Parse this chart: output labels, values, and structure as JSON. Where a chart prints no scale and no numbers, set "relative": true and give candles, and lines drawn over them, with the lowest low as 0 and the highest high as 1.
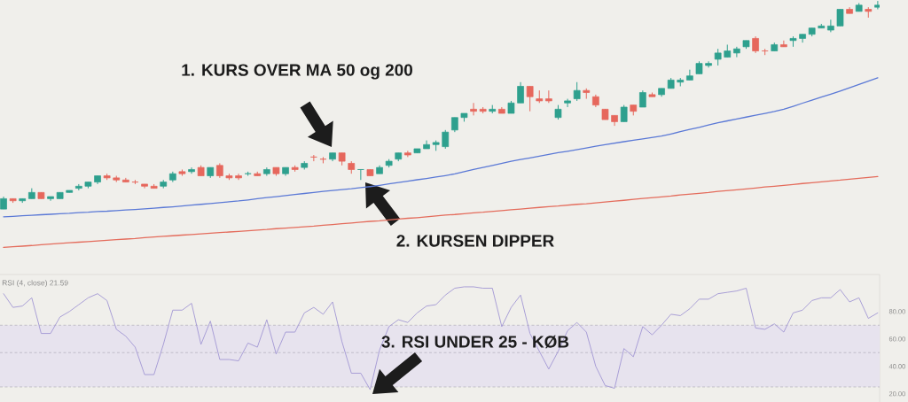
{
  "chart_data": [
    {
      "type": "candlestick",
      "relative": true,
      "categories": [
        null,
        null,
        null,
        null,
        null,
        null,
        null,
        null,
        null,
        null,
        null,
        null,
        null,
        null,
        null,
        null,
        null,
        null,
        null,
        null,
        null,
        null,
        null,
        null,
        null,
        null,
        null,
        null,
        null,
        null,
        null,
        null,
        null,
        null,
        null,
        null,
        null,
        null,
        null,
        null,
        null,
        null,
        null,
        null,
        null,
        null,
        null,
        null,
        null,
        null,
        null,
        null,
        null,
        null,
        null,
        null,
        null,
        null,
        null,
        null,
        null,
        null,
        null,
        null,
        null,
        null,
        null,
        null,
        null,
        null,
        null,
        null,
        null,
        null,
        null,
        null,
        null,
        null,
        null,
        null,
        null,
        null,
        null,
        null,
        null,
        null,
        null,
        null,
        null,
        null,
        null,
        null,
        null,
        null
      ],
      "ohlc": [
        [
          0,
          0.06,
          0,
          0.05
        ],
        [
          0.05,
          0.05,
          0.03,
          0.04
        ],
        [
          0.04,
          0.05,
          0.03,
          0.05
        ],
        [
          0.05,
          0.1,
          0.05,
          0.08
        ],
        [
          0.08,
          0.08,
          0.05,
          0.05
        ],
        [
          0.05,
          0.06,
          0.04,
          0.06
        ],
        [
          0.05,
          0.08,
          0.05,
          0.08
        ],
        [
          0.08,
          0.09,
          0.08,
          0.09
        ],
        [
          0.1,
          0.12,
          0.09,
          0.11
        ],
        [
          0.11,
          0.13,
          0.1,
          0.13
        ],
        [
          0.13,
          0.16,
          0.12,
          0.16
        ],
        [
          0.16,
          0.17,
          0.14,
          0.15
        ],
        [
          0.15,
          0.16,
          0.13,
          0.14
        ],
        [
          0.14,
          0.15,
          0.13,
          0.13
        ],
        [
          0.13,
          0.14,
          0.12,
          0.13
        ],
        [
          0.12,
          0.12,
          0.1,
          0.11
        ],
        [
          0.11,
          0.12,
          0.1,
          0.1
        ],
        [
          0.11,
          0.14,
          0.1,
          0.13
        ],
        [
          0.14,
          0.18,
          0.13,
          0.17
        ],
        [
          0.18,
          0.19,
          0.16,
          0.17
        ],
        [
          0.18,
          0.2,
          0.17,
          0.19
        ],
        [
          0.2,
          0.21,
          0.16,
          0.16
        ],
        [
          0.16,
          0.2,
          0.15,
          0.2
        ],
        [
          0.21,
          0.22,
          0.15,
          0.16
        ],
        [
          0.16,
          0.17,
          0.14,
          0.15
        ],
        [
          0.16,
          0.17,
          0.14,
          0.15
        ],
        [
          0.17,
          0.18,
          0.16,
          0.17
        ],
        [
          0.17,
          0.18,
          0.16,
          0.16
        ],
        [
          0.17,
          0.2,
          0.16,
          0.19
        ],
        [
          0.2,
          0.2,
          0.16,
          0.17
        ],
        [
          0.17,
          0.2,
          0.16,
          0.2
        ],
        [
          0.2,
          0.21,
          0.18,
          0.19
        ],
        [
          0.2,
          0.23,
          0.19,
          0.22
        ],
        [
          0.25,
          0.26,
          0.23,
          0.25
        ],
        [
          0.24,
          0.25,
          0.22,
          0.24
        ],
        [
          0.24,
          0.27,
          0.23,
          0.27
        ],
        [
          0.27,
          0.27,
          0.21,
          0.23
        ],
        [
          0.22,
          0.23,
          0.17,
          0.19
        ],
        [
          0.19,
          0.19,
          0.14,
          0.19
        ],
        [
          0.19,
          0.19,
          0.16,
          0.16
        ],
        [
          0.17,
          0.21,
          0.17,
          0.2
        ],
        [
          0.21,
          0.24,
          0.2,
          0.23
        ],
        [
          0.24,
          0.27,
          0.23,
          0.27
        ],
        [
          0.27,
          0.28,
          0.25,
          0.26
        ],
        [
          0.27,
          0.29,
          0.27,
          0.29
        ],
        [
          0.29,
          0.33,
          0.29,
          0.31
        ],
        [
          0.31,
          0.33,
          0.28,
          0.32
        ],
        [
          0.3,
          0.38,
          0.29,
          0.37
        ],
        [
          0.38,
          0.44,
          0.37,
          0.44
        ],
        [
          0.44,
          0.46,
          0.42,
          0.46
        ],
        [
          0.48,
          0.51,
          0.45,
          0.47
        ],
        [
          0.48,
          0.49,
          0.46,
          0.47
        ],
        [
          0.47,
          0.5,
          0.46,
          0.48
        ],
        [
          0.48,
          0.49,
          0.46,
          0.46
        ],
        [
          0.46,
          0.52,
          0.46,
          0.51
        ],
        [
          0.51,
          0.61,
          0.51,
          0.59
        ],
        [
          0.59,
          0.59,
          0.47,
          0.54
        ],
        [
          0.53,
          0.57,
          0.51,
          0.52
        ],
        [
          0.53,
          0.57,
          0.51,
          0.52
        ],
        [
          0.44,
          0.5,
          0.43,
          0.48
        ],
        [
          0.51,
          0.53,
          0.49,
          0.52
        ],
        [
          0.53,
          0.61,
          0.52,
          0.57
        ],
        [
          0.57,
          0.58,
          0.53,
          0.56
        ],
        [
          0.54,
          0.55,
          0.49,
          0.5
        ],
        [
          0.48,
          0.48,
          0.43,
          0.43
        ],
        [
          0.45,
          0.45,
          0.4,
          0.42
        ],
        [
          0.42,
          0.5,
          0.42,
          0.49
        ],
        [
          0.5,
          0.5,
          0.45,
          0.47
        ],
        [
          0.49,
          0.57,
          0.49,
          0.56
        ],
        [
          0.55,
          0.56,
          0.54,
          0.54
        ],
        [
          0.55,
          0.58,
          0.54,
          0.58
        ],
        [
          0.58,
          0.63,
          0.58,
          0.62
        ],
        [
          0.61,
          0.63,
          0.59,
          0.62
        ],
        [
          0.62,
          0.67,
          0.62,
          0.64
        ],
        [
          0.65,
          0.71,
          0.65,
          0.7
        ],
        [
          0.69,
          0.71,
          0.68,
          0.7
        ],
        [
          0.72,
          0.77,
          0.69,
          0.75
        ],
        [
          0.73,
          0.79,
          0.73,
          0.76
        ],
        [
          0.75,
          0.78,
          0.73,
          0.77
        ],
        [
          0.78,
          0.81,
          0.77,
          0.81
        ],
        [
          0.82,
          0.83,
          0.75,
          0.76
        ],
        [
          0.76,
          0.77,
          0.74,
          0.76
        ],
        [
          0.76,
          0.8,
          0.76,
          0.79
        ],
        [
          0.79,
          0.81,
          0.78,
          0.78
        ],
        [
          0.81,
          0.83,
          0.78,
          0.82
        ],
        [
          0.82,
          0.84,
          0.8,
          0.84
        ],
        [
          0.84,
          0.87,
          0.83,
          0.87
        ],
        [
          0.87,
          0.89,
          0.87,
          0.88
        ],
        [
          0.86,
          0.91,
          0.85,
          0.88
        ],
        [
          0.88,
          0.96,
          0.88,
          0.96
        ],
        [
          0.96,
          0.97,
          0.94,
          0.94
        ],
        [
          0.95,
          0.99,
          0.95,
          0.98
        ],
        [
          0.96,
          0.97,
          0.92,
          0.95
        ],
        [
          0.97,
          1.0,
          0.96,
          0.98
        ]
      ],
      "colors": [
        "#2ea08e",
        "#e6675c",
        "#2ea08e",
        "#2ea08e",
        "#e6675c",
        "#2ea08e",
        "#2ea08e",
        "#2ea08e",
        "#2ea08e",
        "#2ea08e",
        "#2ea08e",
        "#e6675c",
        "#e6675c",
        "#e6675c",
        "#e6675c",
        "#e6675c",
        "#e6675c",
        "#2ea08e",
        "#2ea08e",
        "#e6675c",
        "#2ea08e",
        "#e6675c",
        "#2ea08e",
        "#e6675c",
        "#e6675c",
        "#e6675c",
        "#2ea08e",
        "#e6675c",
        "#2ea08e",
        "#e6675c",
        "#2ea08e",
        "#e6675c",
        "#2ea08e",
        "#e6675c",
        "#e6675c",
        "#2ea08e",
        "#e6675c",
        "#e6675c",
        "#2ea08e",
        "#e6675c",
        "#2ea08e",
        "#2ea08e",
        "#2ea08e",
        "#e6675c",
        "#2ea08e",
        "#2ea08e",
        "#2ea08e",
        "#2ea08e",
        "#2ea08e",
        "#2ea08e",
        "#e6675c",
        "#e6675c",
        "#2ea08e",
        "#e6675c",
        "#2ea08e",
        "#2ea08e",
        "#e6675c",
        "#e6675c",
        "#e6675c",
        "#2ea08e",
        "#2ea08e",
        "#2ea08e",
        "#e6675c",
        "#e6675c",
        "#e6675c",
        "#e6675c",
        "#2ea08e",
        "#e6675c",
        "#2ea08e",
        "#e6675c",
        "#2ea08e",
        "#2ea08e",
        "#2ea08e",
        "#2ea08e",
        "#2ea08e",
        "#2ea08e",
        "#2ea08e",
        "#2ea08e",
        "#2ea08e",
        "#2ea08e",
        "#e6675c",
        "#e6675c",
        "#2ea08e",
        "#e6675c",
        "#2ea08e",
        "#2ea08e",
        "#2ea08e",
        "#2ea08e",
        "#2ea08e",
        "#2ea08e",
        "#e6675c",
        "#2ea08e",
        "#e6675c",
        "#2ea08e"
      ],
      "series": [
        {
          "type": "line",
          "color": "#5b79d6",
          "values": [
            -0.037,
            -0.035,
            -0.032,
            -0.03,
            -0.027,
            -0.025,
            -0.022,
            -0.02,
            -0.017,
            -0.015,
            -0.012,
            -0.01,
            -0.007,
            -0.004,
            -0.002,
            0.001,
            0.004,
            0.008,
            0.011,
            0.015,
            0.019,
            0.023,
            0.027,
            0.031,
            0.035,
            0.039,
            0.044,
            0.05,
            0.055,
            0.06,
            0.065,
            0.07,
            0.075,
            0.08,
            0.085,
            0.089,
            0.094,
            0.098,
            0.103,
            0.108,
            0.114,
            0.121,
            0.128,
            0.134,
            0.141,
            0.147,
            0.154,
            0.161,
            0.169,
            0.18,
            0.19,
            0.2,
            0.21,
            0.22,
            0.23,
            0.238,
            0.246,
            0.254,
            0.263,
            0.271,
            0.278,
            0.286,
            0.294,
            0.302,
            0.31,
            0.317,
            0.324,
            0.331,
            0.337,
            0.344,
            0.351,
            0.361,
            0.372,
            0.383,
            0.393,
            0.404,
            0.415,
            0.424,
            0.433,
            0.442,
            0.451,
            0.46,
            0.469,
            0.48,
            0.494,
            0.509,
            0.523,
            0.538,
            0.552,
            0.567,
            0.583,
            0.599,
            0.615,
            0.631
          ]
        },
        {
          "type": "line",
          "color": "#e46c5c",
          "values": [
            -0.184,
            -0.181,
            -0.178,
            -0.175,
            -0.171,
            -0.168,
            -0.165,
            -0.162,
            -0.159,
            -0.156,
            -0.153,
            -0.15,
            -0.147,
            -0.144,
            -0.141,
            -0.137,
            -0.134,
            -0.131,
            -0.128,
            -0.125,
            -0.122,
            -0.119,
            -0.116,
            -0.113,
            -0.11,
            -0.107,
            -0.104,
            -0.101,
            -0.098,
            -0.094,
            -0.091,
            -0.088,
            -0.085,
            -0.082,
            -0.078,
            -0.074,
            -0.07,
            -0.067,
            -0.063,
            -0.059,
            -0.056,
            -0.052,
            -0.048,
            -0.044,
            -0.041,
            -0.037,
            -0.033,
            -0.029,
            -0.026,
            -0.022,
            -0.018,
            -0.015,
            -0.011,
            -0.007,
            -0.003,
            0.0,
            0.004,
            0.008,
            0.012,
            0.015,
            0.019,
            0.023,
            0.026,
            0.03,
            0.034,
            0.038,
            0.042,
            0.047,
            0.051,
            0.055,
            0.059,
            0.063,
            0.068,
            0.072,
            0.076,
            0.08,
            0.085,
            0.089,
            0.093,
            0.097,
            0.101,
            0.106,
            0.11,
            0.114,
            0.118,
            0.123,
            0.127,
            0.131,
            0.135,
            0.139,
            0.144,
            0.148,
            0.152,
            0.156
          ]
        }
      ],
      "annotations": [
        "1. KURS OVER MA 50 og 200",
        "2. KURSEN DIPPER"
      ]
    },
    {
      "type": "line",
      "title": "RSI (4, close) 21.59",
      "categories": [
        null,
        null,
        null,
        null,
        null,
        null,
        null,
        null,
        null,
        null,
        null,
        null,
        null,
        null,
        null,
        null,
        null,
        null,
        null,
        null,
        null,
        null,
        null,
        null,
        null,
        null,
        null,
        null,
        null,
        null,
        null,
        null,
        null,
        null,
        null,
        null,
        null,
        null,
        null,
        null,
        null,
        null,
        null,
        null,
        null,
        null,
        null,
        null,
        null,
        null,
        null,
        null,
        null,
        null,
        null,
        null,
        null,
        null,
        null,
        null,
        null,
        null,
        null,
        null,
        null,
        null,
        null,
        null,
        null,
        null,
        null,
        null,
        null,
        null,
        null,
        null,
        null,
        null,
        null,
        null,
        null,
        null,
        null,
        null,
        null,
        null,
        null,
        null,
        null,
        null,
        null,
        null,
        null,
        null
      ],
      "values": [
        93,
        83,
        84,
        90,
        64,
        64,
        76,
        80,
        85,
        90,
        93,
        88,
        67,
        62,
        54,
        34,
        34,
        56,
        81,
        81,
        86,
        56,
        73,
        45,
        45,
        44,
        57,
        54,
        74,
        49,
        65,
        65,
        79,
        83,
        78,
        87,
        58,
        35,
        35,
        23,
        52,
        69,
        74,
        72,
        79,
        84,
        85,
        92,
        97,
        98,
        98,
        97,
        97,
        69,
        83,
        92,
        64,
        51,
        38,
        51,
        66,
        72,
        65,
        40,
        26,
        24,
        53,
        47,
        69,
        63,
        70,
        78,
        77,
        82,
        89,
        89,
        93,
        94,
        95,
        97,
        68,
        67,
        71,
        65,
        79,
        81,
        88,
        90,
        90,
        96,
        87,
        90,
        75,
        79
      ],
      "color": "#a196d4",
      "ylim": [
        14,
        107
      ],
      "yticks": [
        {
          "value": 20,
          "label": "20.00"
        },
        {
          "value": 40,
          "label": "40.00"
        },
        {
          "value": 60,
          "label": "60.00"
        },
        {
          "value": 80,
          "label": "80.00"
        }
      ],
      "tick_labels": "y",
      "bands": [
        {
          "axis": "y",
          "from": 25,
          "to": 70,
          "color": "#e7e3ee"
        }
      ],
      "ref_lines": [
        {
          "axis": "y",
          "value": 70,
          "color": "#a8a5b0",
          "line_style": "dashed"
        },
        {
          "axis": "y",
          "value": 50,
          "color": "#a8a5b0",
          "line_style": "dashed"
        },
        {
          "axis": "y",
          "value": 25,
          "color": "#a8a5b0",
          "line_style": "dashed"
        }
      ],
      "annotations": [
        "3. RSI UNDER 25 - KØB"
      ]
    }
  ]
}
